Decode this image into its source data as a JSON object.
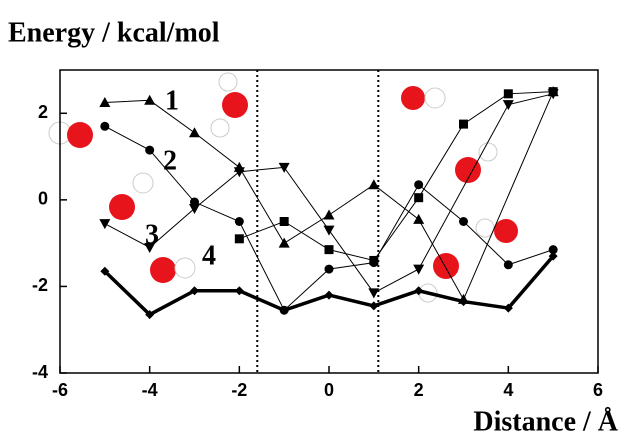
{
  "chart_data": {
    "type": "line",
    "y_label": "Energy / kcal/mol",
    "x_label": "Distance / Å",
    "xlim": [
      -6,
      6
    ],
    "xticks": [
      -6,
      -4,
      -2,
      0,
      2,
      4,
      6
    ],
    "ylim": [
      -4,
      3
    ],
    "yticks": [
      -4,
      -2,
      0,
      2
    ],
    "vlines": [
      -1.6,
      1.1
    ],
    "annotations": [
      "1",
      "2",
      "3",
      "4"
    ],
    "series": [
      {
        "color": "#000000",
        "marker": "triangle-up",
        "line_width": 1,
        "x": [
          -5,
          -4,
          -3,
          -2,
          -1,
          0,
          1,
          2,
          3,
          5
        ],
        "values": [
          2.25,
          2.3,
          1.55,
          0.75,
          -1.0,
          -0.35,
          0.35,
          -0.45,
          -2.3,
          2.5
        ]
      },
      {
        "color": "#000000",
        "marker": "circle",
        "line_width": 1,
        "x": [
          -5,
          -4,
          -3,
          -2,
          -1,
          0,
          1,
          2,
          3,
          4,
          5
        ],
        "values": [
          1.7,
          1.15,
          -0.05,
          -0.5,
          -2.55,
          -1.6,
          -1.45,
          0.35,
          -0.5,
          -1.5,
          -1.15
        ]
      },
      {
        "color": "#000000",
        "marker": "triangle-down",
        "line_width": 1,
        "x": [
          -5,
          -4,
          -3,
          -2,
          -1,
          0,
          1,
          2,
          4,
          5
        ],
        "values": [
          -0.55,
          -1.1,
          -0.2,
          0.65,
          0.75,
          -0.7,
          -2.15,
          -1.6,
          2.2,
          2.45
        ]
      },
      {
        "color": "#000000",
        "marker": "square",
        "line_width": 1,
        "x": [
          -2,
          -1,
          0,
          1,
          2,
          3,
          4,
          5
        ],
        "values": [
          -0.9,
          -0.5,
          -1.15,
          -1.4,
          0.05,
          1.75,
          2.45,
          2.5
        ]
      },
      {
        "color": "#000000",
        "marker": "diamond",
        "line_width": 3.5,
        "x": [
          -5,
          -4,
          -3,
          -2,
          -1,
          0,
          1,
          2,
          3,
          4,
          5
        ],
        "values": [
          -1.65,
          -2.65,
          -2.1,
          -2.1,
          -2.55,
          -2.2,
          -2.45,
          -2.1,
          -2.35,
          -2.5,
          -1.3
        ]
      }
    ]
  }
}
